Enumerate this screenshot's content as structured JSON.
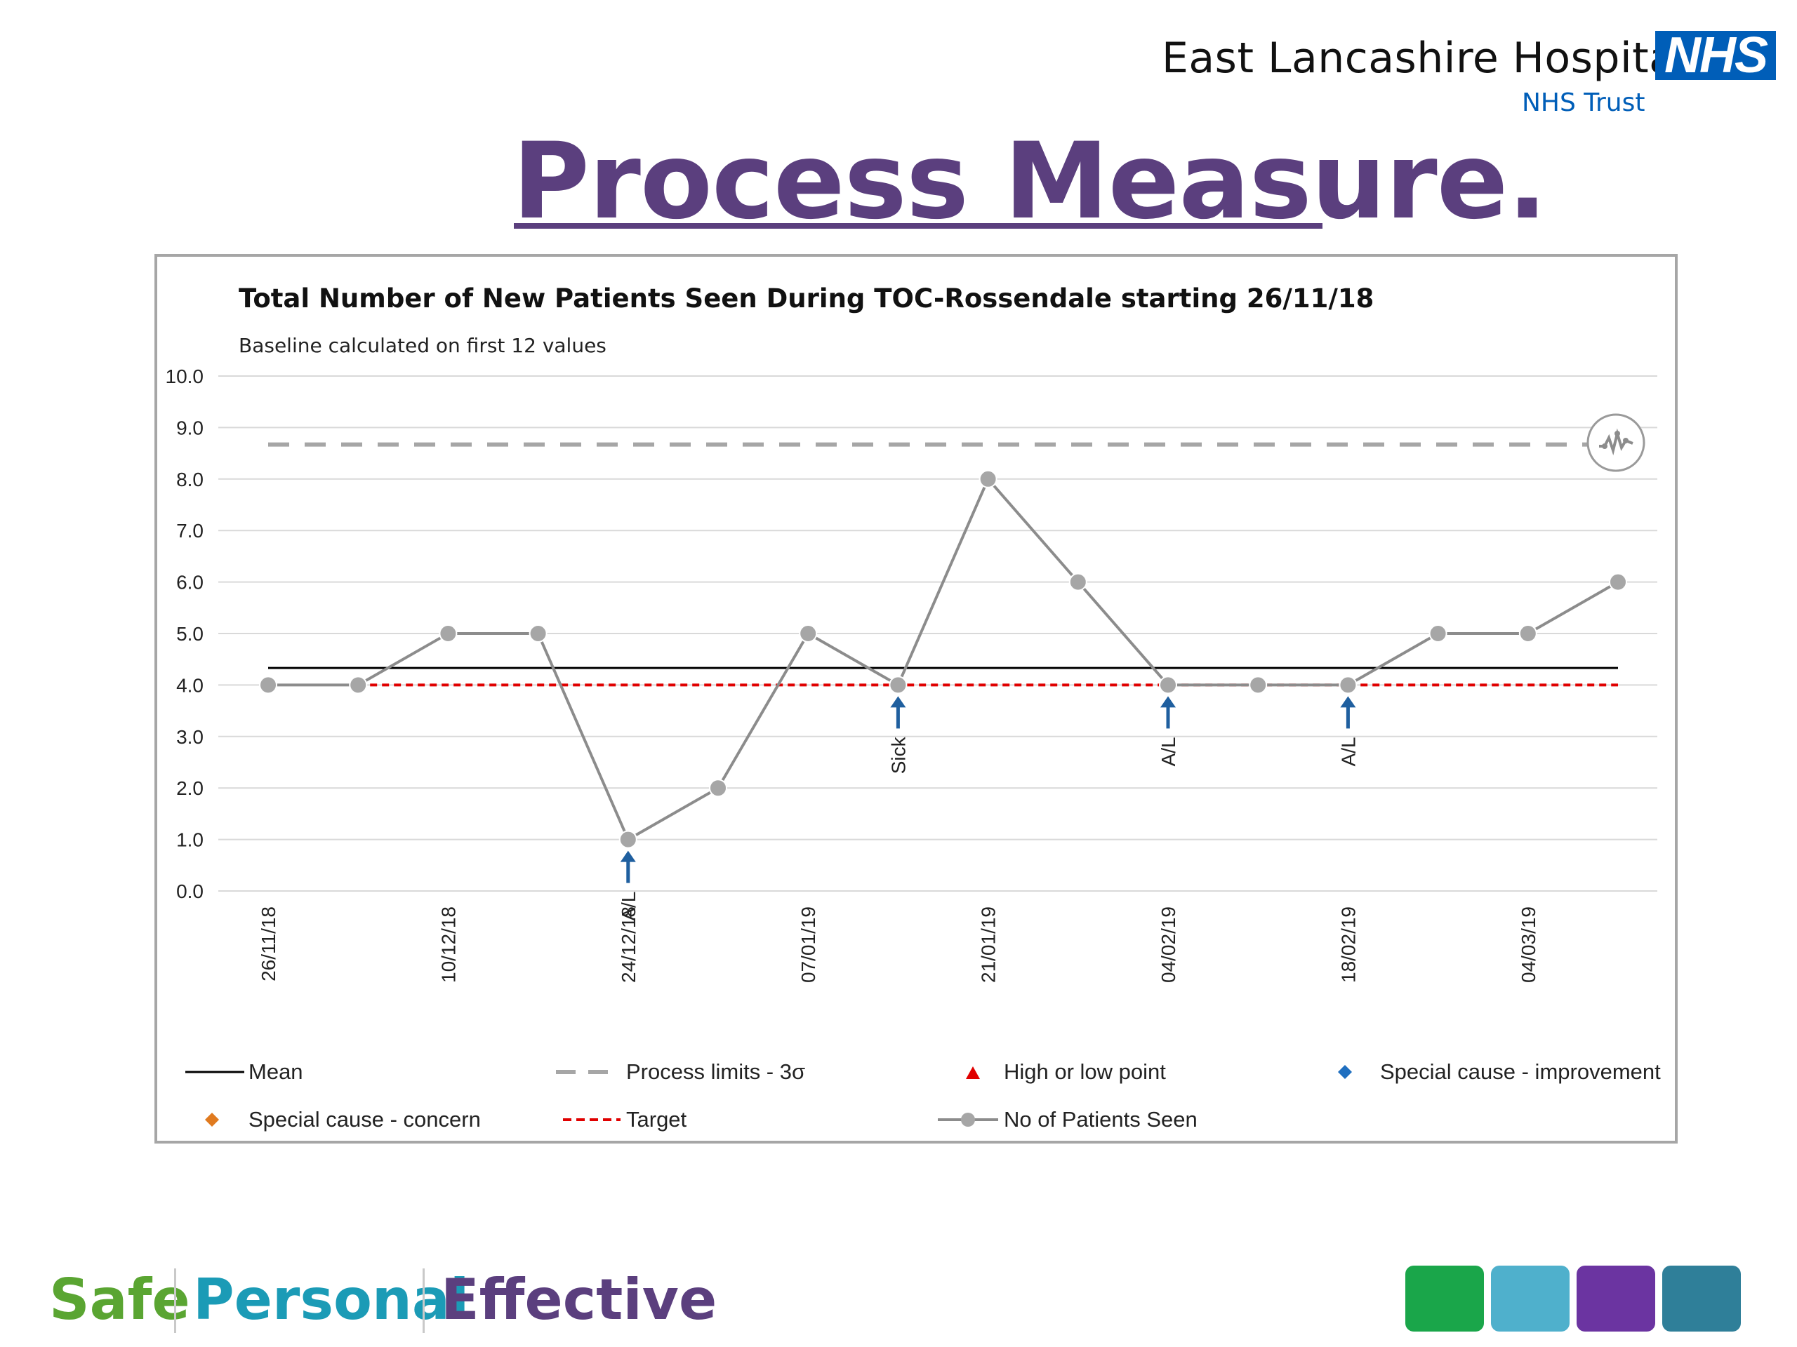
{
  "header": {
    "org_name": "East Lancashire Hospitals",
    "logo_text": "NHS",
    "org_sub": "NHS Trust",
    "page_title": "Process Measure."
  },
  "chart_data": {
    "type": "line",
    "title": "Total Number of New Patients Seen During TOC-Rossendale  starting 26/11/18",
    "subtitle": "Baseline calculated  on first 12 values",
    "ylim": [
      0,
      10
    ],
    "y_ticks": [
      "0.0",
      "1.0",
      "2.0",
      "3.0",
      "4.0",
      "5.0",
      "6.0",
      "7.0",
      "8.0",
      "9.0",
      "10.0"
    ],
    "x_tick_labels": [
      "26/11/18",
      "10/12/18",
      "24/12/18",
      "07/01/19",
      "21/01/19",
      "04/02/19",
      "18/02/19",
      "04/03/19"
    ],
    "x_tick_indices": [
      0,
      2,
      4,
      6,
      8,
      10,
      12,
      14
    ],
    "grid": "horizontal",
    "legend_placement": "bottom",
    "series": [
      {
        "name": "No of Patients Seen",
        "color": "#8c8c8c",
        "values": [
          4,
          4,
          5,
          5,
          1,
          2,
          5,
          4,
          8,
          6,
          4,
          4,
          4,
          5,
          5,
          6
        ]
      },
      {
        "name": "Mean",
        "color": "#000000",
        "value": 4.33
      },
      {
        "name": "Target",
        "color": "#e00000",
        "value": 4,
        "from_index": 1
      },
      {
        "name": "Process limits - 3σ",
        "color": "#a6a6a6",
        "value": 8.67
      }
    ],
    "annotations": [
      {
        "index": 4,
        "text": "A/L"
      },
      {
        "index": 7,
        "text": "Sick"
      },
      {
        "index": 10,
        "text": "A/L"
      },
      {
        "index": 12,
        "text": "A/L"
      }
    ],
    "legend": [
      {
        "label": "Mean",
        "style": "line-black"
      },
      {
        "label": "Process limits - 3σ",
        "style": "dash-grey"
      },
      {
        "label": "High or low point",
        "style": "triangle-red"
      },
      {
        "label": "Special cause - improvement",
        "style": "diamond-blue"
      },
      {
        "label": "Special cause - concern",
        "style": "diamond-orange"
      },
      {
        "label": "Target",
        "style": "dash-red"
      },
      {
        "label": "No of Patients Seen",
        "style": "line-dot-grey"
      }
    ],
    "icon": "spc-variation-icon"
  },
  "footer": {
    "words": [
      {
        "text": "Safe",
        "color": "#5aa532"
      },
      {
        "text": "Personal",
        "color": "#1b9bb6"
      },
      {
        "text": "Effective",
        "color": "#5b3f7e"
      }
    ],
    "swatches": [
      "#1aa64a",
      "#4fb0cc",
      "#6b34a1",
      "#2f7f99"
    ]
  }
}
